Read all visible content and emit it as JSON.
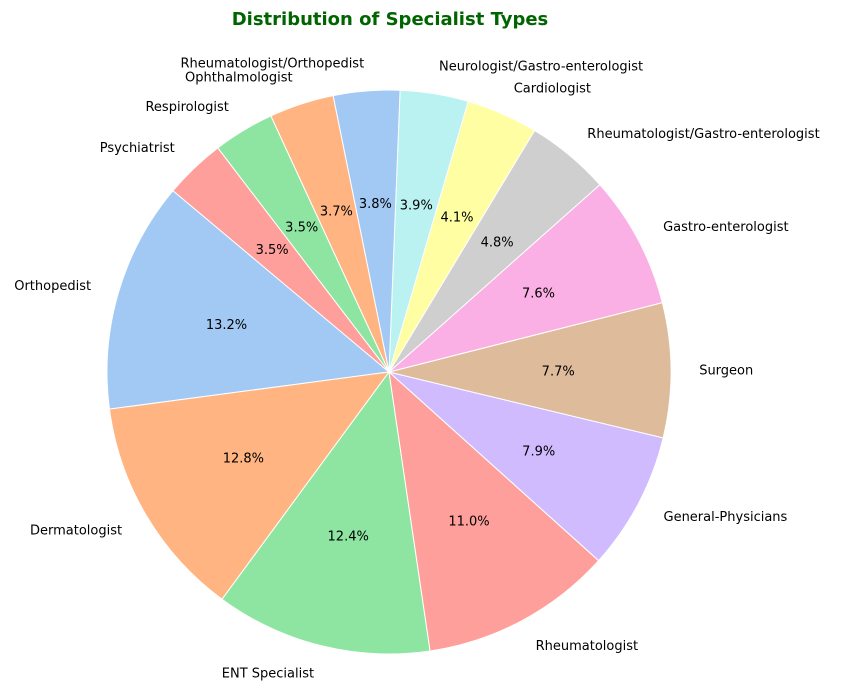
{
  "chart_data": {
    "type": "pie",
    "title": "Distribution of Specialist Types",
    "title_color": "#006400",
    "slices": [
      {
        "label": "Orthopedist",
        "value": 13.2,
        "pct_label": "13.2%",
        "color": "#a1c9f4"
      },
      {
        "label": "Dermatologist",
        "value": 12.8,
        "pct_label": "12.8%",
        "color": "#ffb482"
      },
      {
        "label": "ENT Specialist",
        "value": 12.4,
        "pct_label": "12.4%",
        "color": "#8de5a1"
      },
      {
        "label": "Rheumatologist",
        "value": 11.0,
        "pct_label": "11.0%",
        "color": "#ff9f9b"
      },
      {
        "label": "General-Physicians",
        "value": 7.9,
        "pct_label": "7.9%",
        "color": "#d0bbff"
      },
      {
        "label": "Surgeon",
        "value": 7.7,
        "pct_label": "7.7%",
        "color": "#debb9b"
      },
      {
        "label": "Gastro-enterologist",
        "value": 7.6,
        "pct_label": "7.6%",
        "color": "#fab0e4"
      },
      {
        "label": "Rheumatologist/Gastro-enterologist",
        "value": 4.8,
        "pct_label": "4.8%",
        "color": "#cfcfcf"
      },
      {
        "label": "Cardiologist",
        "value": 4.1,
        "pct_label": "4.1%",
        "color": "#fffea3"
      },
      {
        "label": "Neurologist/Gastro-enterologist",
        "value": 3.9,
        "pct_label": "3.9%",
        "color": "#b9f2f0"
      },
      {
        "label": "Rheumatologist/Orthopedist",
        "value": 3.8,
        "pct_label": "3.8%",
        "color": "#a1c9f4"
      },
      {
        "label": "Ophthalmologist",
        "value": 3.7,
        "pct_label": "3.7%",
        "color": "#ffb482"
      },
      {
        "label": "Respirologist",
        "value": 3.5,
        "pct_label": "3.5%",
        "color": "#8de5a1"
      },
      {
        "label": "Psychiatrist",
        "value": 3.5,
        "pct_label": "3.5%",
        "color": "#ff9f9b"
      }
    ]
  }
}
